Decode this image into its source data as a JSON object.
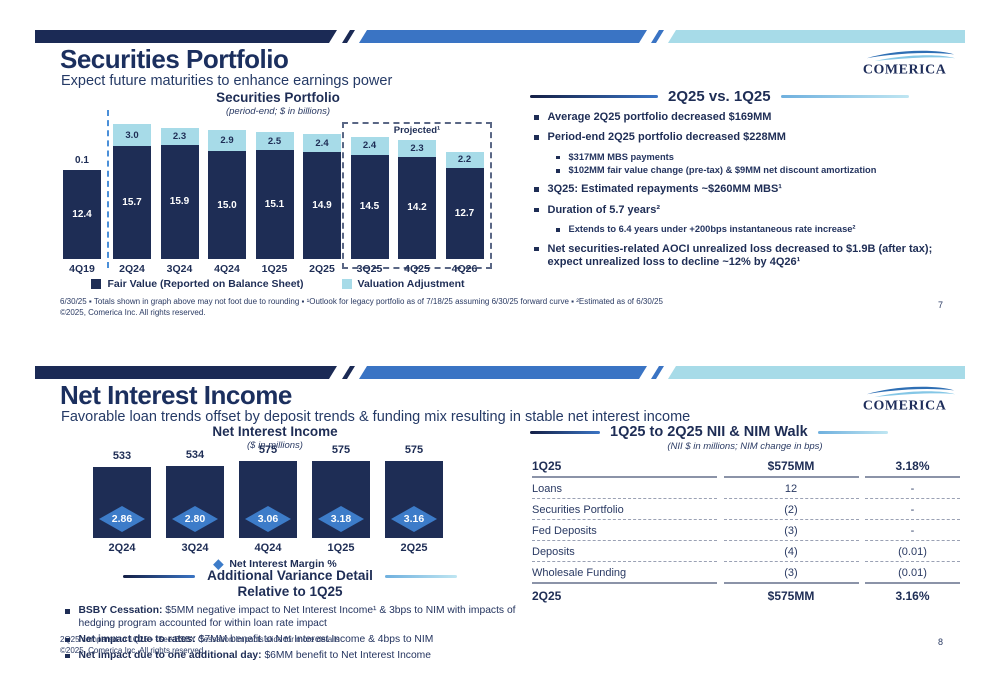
{
  "slide1": {
    "title": "Securities Portfolio",
    "subtitle": "Expect future maturities to enhance earnings power",
    "logo_text": "COMERICA",
    "chart": {
      "title": "Securities Portfolio",
      "subtitle": "(period-end; $ in billions)",
      "projected_label": "Projected¹",
      "legend": [
        {
          "label": "Fair Value (Reported on Balance Sheet)",
          "color": "#1e2d55"
        },
        {
          "label": "Valuation Adjustment",
          "color": "#a7dbe8"
        }
      ]
    },
    "right": {
      "heading": "2Q25 vs. 1Q25",
      "bullets": [
        {
          "level": 1,
          "bold": true,
          "text": "Average 2Q25 portfolio decreased $169MM"
        },
        {
          "level": 1,
          "bold": true,
          "text": "Period-end 2Q25 portfolio decreased $228MM"
        },
        {
          "level": 2,
          "bold": false,
          "text": "$317MM MBS payments"
        },
        {
          "level": 2,
          "bold": false,
          "text": "$102MM fair value change (pre-tax) & $9MM net discount amortization"
        },
        {
          "level": 1,
          "bold": false,
          "text": "3Q25: Estimated repayments ~$260MM MBS¹"
        },
        {
          "level": 1,
          "bold": false,
          "text": "Duration of 5.7 years²"
        },
        {
          "level": 2,
          "bold": false,
          "text": "Extends to 6.4 years under +200bps instantaneous rate increase²"
        },
        {
          "level": 1,
          "bold": false,
          "text": "Net securities-related AOCI unrealized loss decreased to $1.9B (after tax); expect unrealized loss to decline ~12% by 4Q26¹"
        }
      ]
    },
    "footnote1": "6/30/25 ▪ Totals shown in graph above may not foot due to rounding ▪ ¹Outlook for legacy portfolio as of 7/18/25 assuming 6/30/25 forward curve ▪ ²Estimated as of 6/30/25",
    "footnote2": "©2025, Comerica Inc. All rights reserved.",
    "page_number": "7"
  },
  "slide2": {
    "title": "Net Interest Income",
    "subtitle": "Favorable loan trends offset by deposit trends & funding mix resulting in stable net interest income",
    "logo_text": "COMERICA",
    "chart": {
      "title": "Net Interest Income",
      "subtitle": "($ in millions)",
      "legend_label": "Net Interest Margin %"
    },
    "variance": {
      "heading_line1": "Additional Variance Detail",
      "heading_line2": "Relative to 1Q25",
      "bullets": [
        {
          "lead": "BSBY Cessation:",
          "text": " $5MM negative impact to Net Interest Income¹ & 3bps to NIM with impacts of hedging program accounted for within loan rate impact"
        },
        {
          "lead": "Net impact due to rates:",
          "text": " $7MM benefit to Net Interest Income & 4bps to NIM"
        },
        {
          "lead": "Net impact due to one additional day:",
          "text": " $6MM benefit to Net Interest Income"
        }
      ]
    },
    "table": {
      "heading": "1Q25 to 2Q25 NII & NIM Walk",
      "subheading": "(NII $ in millions; NIM change in bps)",
      "rows": [
        {
          "label": "1Q25",
          "nii": "$575MM",
          "nim": "3.18%",
          "style": "header"
        },
        {
          "label": "Loans",
          "nii": "12",
          "nim": "-",
          "style": "dashed"
        },
        {
          "label": "Securities Portfolio",
          "nii": "(2)",
          "nim": "-",
          "style": "dashed"
        },
        {
          "label": "Fed Deposits",
          "nii": "(3)",
          "nim": "-",
          "style": "dashed"
        },
        {
          "label": "Deposits",
          "nii": "(4)",
          "nim": "(0.01)",
          "style": "dashed"
        },
        {
          "label": "Wholesale Funding",
          "nii": "(3)",
          "nim": "(0.01)",
          "style": "solid"
        },
        {
          "label": "2Q25",
          "nii": "$575MM",
          "nim": "3.16%",
          "style": "footer"
        }
      ]
    },
    "footnote1": "2Q25 compared to 1Q25 ▪ ¹See BSBY Cessation Impacts slide for more details",
    "footnote2": "©2025, Comerica Inc. All rights reserved.",
    "page_number": "8"
  },
  "chart_data": [
    {
      "type": "bar",
      "stacked": true,
      "title": "Securities Portfolio",
      "subtitle": "(period-end; $ in billions)",
      "categories": [
        "4Q19",
        "2Q24",
        "3Q24",
        "4Q24",
        "1Q25",
        "2Q25",
        "3Q25",
        "4Q25",
        "4Q26"
      ],
      "series": [
        {
          "name": "Fair Value (Reported on Balance Sheet)",
          "values": [
            12.4,
            15.7,
            15.9,
            15.0,
            15.1,
            14.9,
            14.5,
            14.2,
            12.7
          ]
        },
        {
          "name": "Valuation Adjustment",
          "values": [
            0.1,
            3.0,
            2.3,
            2.9,
            2.5,
            2.4,
            2.4,
            2.3,
            2.2
          ]
        }
      ],
      "projected_categories": [
        "3Q25",
        "4Q25",
        "4Q26"
      ],
      "separator_after_category": "4Q19",
      "legend_position": "bottom"
    },
    {
      "type": "bar",
      "title": "Net Interest Income",
      "subtitle": "($ in millions)",
      "categories": [
        "2Q24",
        "3Q24",
        "4Q24",
        "1Q25",
        "2Q25"
      ],
      "series": [
        {
          "name": "Net Interest Income ($ in millions)",
          "values": [
            533,
            534,
            575,
            575,
            575
          ]
        },
        {
          "name": "Net Interest Margin %",
          "type": "marker",
          "values": [
            2.86,
            2.8,
            3.06,
            3.18,
            3.16
          ]
        }
      ],
      "legend_position": "bottom"
    }
  ],
  "colors": {
    "navy": "#1e2d55",
    "band_blue": "#3a74c4",
    "cyan": "#a7dbe8",
    "diamond_blue": "#3d7cc9",
    "dashed_guide_blue": "#4a8fd8",
    "table_line_gray": "#8b93a8"
  }
}
